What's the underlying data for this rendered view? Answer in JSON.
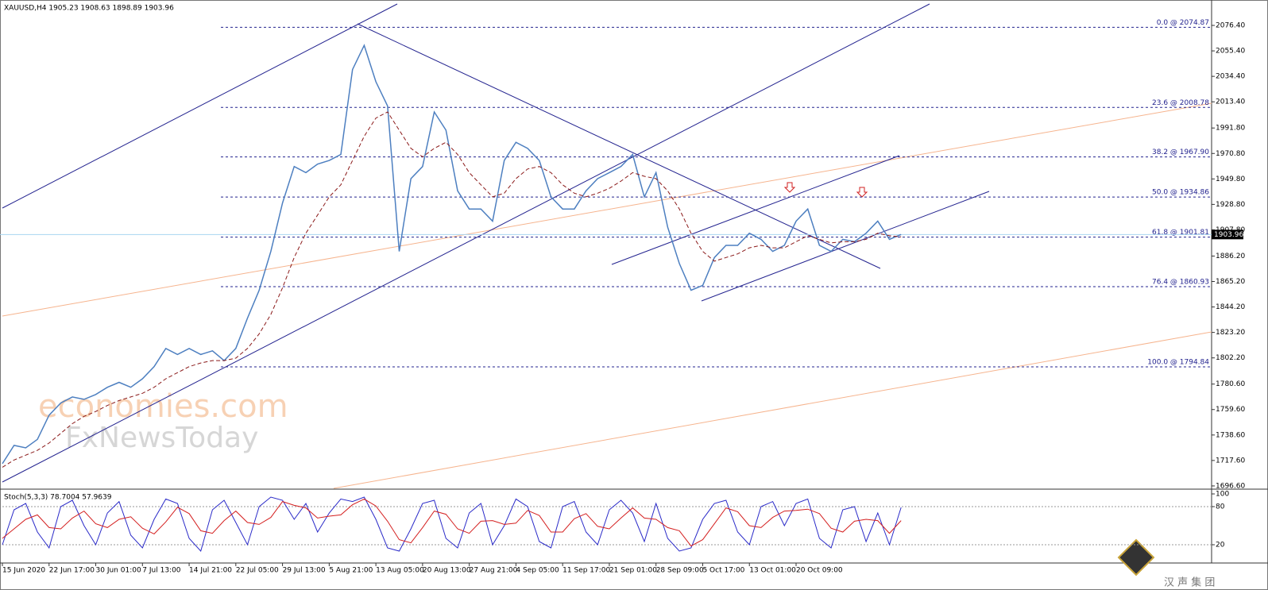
{
  "chart_data": [
    {
      "type": "line",
      "title": "XAUUSD,H4  1905.23 1908.63 1898.89 1903.96",
      "x": [
        0,
        1,
        2,
        3,
        4,
        5,
        6,
        7,
        8,
        9,
        10,
        11,
        12,
        13,
        14,
        15,
        16,
        17,
        18,
        19,
        20,
        21,
        22,
        23,
        24,
        25,
        26,
        27,
        28,
        29,
        30,
        31,
        32,
        33,
        34,
        35,
        36,
        37,
        38,
        39,
        40,
        41,
        42,
        43,
        44,
        45,
        46,
        47,
        48,
        49,
        50,
        51,
        52,
        53,
        54,
        55,
        56,
        57,
        58,
        59,
        60,
        61,
        62,
        63,
        64,
        65,
        66,
        67,
        68,
        69,
        70,
        71,
        72,
        73,
        74,
        75,
        76,
        77
      ],
      "series": [
        {
          "color": "#4d7fc0",
          "values": [
            1715,
            1730,
            1728,
            1735,
            1755,
            1765,
            1770,
            1768,
            1772,
            1778,
            1782,
            1778,
            1785,
            1795,
            1810,
            1805,
            1810,
            1805,
            1808,
            1800,
            1810,
            1835,
            1858,
            1890,
            1930,
            1960,
            1955,
            1962,
            1965,
            1970,
            2040,
            2060,
            2030,
            2010,
            1890,
            1950,
            1960,
            2005,
            1990,
            1940,
            1925,
            1925,
            1915,
            1965,
            1980,
            1975,
            1965,
            1935,
            1925,
            1925,
            1940,
            1950,
            1955,
            1960,
            1970,
            1935,
            1955,
            1910,
            1880,
            1858,
            1862,
            1885,
            1895,
            1895,
            1905,
            1900,
            1890,
            1895,
            1915,
            1925,
            1895,
            1890,
            1900,
            1898,
            1905,
            1915,
            1900,
            1903.96
          ]
        },
        {
          "color": "#8b1a1a",
          "values": [
            1712,
            1718,
            1722,
            1726,
            1732,
            1740,
            1748,
            1754,
            1758,
            1763,
            1767,
            1770,
            1773,
            1778,
            1785,
            1790,
            1795,
            1798,
            1800,
            1800,
            1802,
            1810,
            1822,
            1838,
            1860,
            1885,
            1905,
            1920,
            1935,
            1945,
            1965,
            1985,
            2000,
            2005,
            1990,
            1975,
            1968,
            1975,
            1980,
            1970,
            1955,
            1945,
            1935,
            1938,
            1950,
            1958,
            1960,
            1955,
            1945,
            1938,
            1935,
            1938,
            1942,
            1948,
            1955,
            1952,
            1950,
            1940,
            1925,
            1905,
            1890,
            1882,
            1885,
            1888,
            1893,
            1895,
            1893,
            1893,
            1898,
            1903,
            1900,
            1897,
            1898,
            1898,
            1900,
            1905,
            1903,
            1902
          ]
        }
      ],
      "xlim": [
        0,
        103.6
      ],
      "xticks": [
        {
          "value": 0,
          "label": "15 Jun 2020"
        },
        {
          "value": 4,
          "label": "22 Jun 17:00"
        },
        {
          "value": 8,
          "label": "30 Jun 01:00"
        },
        {
          "value": 12,
          "label": "7 Jul 13:00"
        },
        {
          "value": 16,
          "label": "14 Jul 21:00"
        },
        {
          "value": 20,
          "label": "22 Jul 05:00"
        },
        {
          "value": 24,
          "label": "29 Jul 13:00"
        },
        {
          "value": 28,
          "label": "5 Aug 21:00"
        },
        {
          "value": 32,
          "label": "13 Aug 05:00"
        },
        {
          "value": 36,
          "label": "20 Aug 13:00"
        },
        {
          "value": 40,
          "label": "27 Aug 21:00"
        },
        {
          "value": 44,
          "label": "4 Sep 05:00"
        },
        {
          "value": 48,
          "label": "11 Sep 17:00"
        },
        {
          "value": 52,
          "label": "21 Sep 01:00"
        },
        {
          "value": 56,
          "label": "28 Sep 09:00"
        },
        {
          "value": 60,
          "label": "5 Oct 17:00"
        },
        {
          "value": 64,
          "label": "13 Oct 01:00"
        },
        {
          "value": 68,
          "label": "20 Oct 09:00"
        }
      ],
      "ylim": [
        1694.6,
        2095.4
      ],
      "yticks": [
        {
          "value": 2076.4,
          "label": "2076.40"
        },
        {
          "value": 2055.4,
          "label": "2055.40"
        },
        {
          "value": 2034.4,
          "label": "2034.40"
        },
        {
          "value": 2013.4,
          "label": "2013.40"
        },
        {
          "value": 1991.8,
          "label": "1991.80"
        },
        {
          "value": 1970.8,
          "label": "1970.80"
        },
        {
          "value": 1949.8,
          "label": "1949.80"
        },
        {
          "value": 1928.8,
          "label": "1928.80"
        },
        {
          "value": 1907.8,
          "label": "1907.80"
        },
        {
          "value": 1886.2,
          "label": "1886.20"
        },
        {
          "value": 1865.2,
          "label": "1865.20"
        },
        {
          "value": 1844.2,
          "label": "1844.20"
        },
        {
          "value": 1823.2,
          "label": "1823.20"
        },
        {
          "value": 1802.2,
          "label": "1802.20"
        },
        {
          "value": 1780.6,
          "label": "1780.60"
        },
        {
          "value": 1759.6,
          "label": "1759.60"
        },
        {
          "value": 1738.6,
          "label": "1738.60"
        },
        {
          "value": 1717.6,
          "label": "1717.60"
        },
        {
          "value": 1696.6,
          "label": "1696.60"
        }
      ],
      "fib_levels": [
        {
          "value": 2074.87,
          "label": "0.0 @ 2074.87"
        },
        {
          "value": 2008.78,
          "label": "23.6 @ 2008.78"
        },
        {
          "value": 1967.9,
          "label": "38.2 @ 1967.90"
        },
        {
          "value": 1934.86,
          "label": "50.0 @ 1934.86"
        },
        {
          "value": 1901.81,
          "label": "61.8 @ 1901.81"
        },
        {
          "value": 1860.93,
          "label": "76.4 @ 1860.93"
        },
        {
          "value": 1794.84,
          "label": "100.0 @ 1794.84"
        }
      ],
      "last_price": 1903.96,
      "watermarks": [
        "economies.com",
        "FxNewsToday"
      ]
    },
    {
      "type": "line",
      "title": "Stoch(5,3,3) 78.7004 57.9639",
      "x": [
        0,
        1,
        2,
        3,
        4,
        5,
        6,
        7,
        8,
        9,
        10,
        11,
        12,
        13,
        14,
        15,
        16,
        17,
        18,
        19,
        20,
        21,
        22,
        23,
        24,
        25,
        26,
        27,
        28,
        29,
        30,
        31,
        32,
        33,
        34,
        35,
        36,
        37,
        38,
        39,
        40,
        41,
        42,
        43,
        44,
        45,
        46,
        47,
        48,
        49,
        50,
        51,
        52,
        53,
        54,
        55,
        56,
        57,
        58,
        59,
        60,
        61,
        62,
        63,
        64,
        65,
        66,
        67,
        68,
        69,
        70,
        71,
        72,
        73,
        74,
        75,
        76,
        77
      ],
      "series": [
        {
          "color": "#2a2ac8",
          "values": [
            20,
            75,
            85,
            40,
            15,
            80,
            90,
            50,
            20,
            70,
            88,
            35,
            15,
            60,
            92,
            85,
            30,
            10,
            75,
            90,
            55,
            20,
            80,
            95,
            90,
            60,
            85,
            40,
            70,
            92,
            88,
            95,
            60,
            15,
            10,
            45,
            85,
            90,
            30,
            15,
            70,
            85,
            20,
            50,
            92,
            80,
            25,
            15,
            80,
            88,
            40,
            20,
            75,
            90,
            70,
            25,
            85,
            30,
            10,
            15,
            60,
            85,
            90,
            40,
            20,
            80,
            88,
            50,
            85,
            92,
            30,
            15,
            75,
            80,
            25,
            70,
            20,
            78.7004
          ]
        },
        {
          "color": "#d42020",
          "values": [
            30,
            45,
            60,
            67,
            47,
            45,
            62,
            73,
            53,
            47,
            60,
            64,
            46,
            37,
            56,
            79,
            69,
            42,
            38,
            58,
            73,
            55,
            52,
            63,
            88,
            82,
            78,
            62,
            65,
            67,
            83,
            92,
            81,
            57,
            28,
            23,
            47,
            73,
            68,
            45,
            38,
            57,
            58,
            52,
            54,
            74,
            66,
            40,
            40,
            61,
            69,
            49,
            45,
            62,
            78,
            62,
            60,
            47,
            42,
            18,
            28,
            53,
            78,
            72,
            50,
            47,
            63,
            73,
            74,
            76,
            69,
            46,
            40,
            57,
            60,
            58,
            38,
            57.9639
          ]
        }
      ],
      "xlim": [
        0,
        103.6
      ],
      "ylim": [
        -7.5,
        106.25
      ],
      "yticks": [
        100,
        80,
        20
      ]
    }
  ],
  "logo": "汉 声 集 团"
}
